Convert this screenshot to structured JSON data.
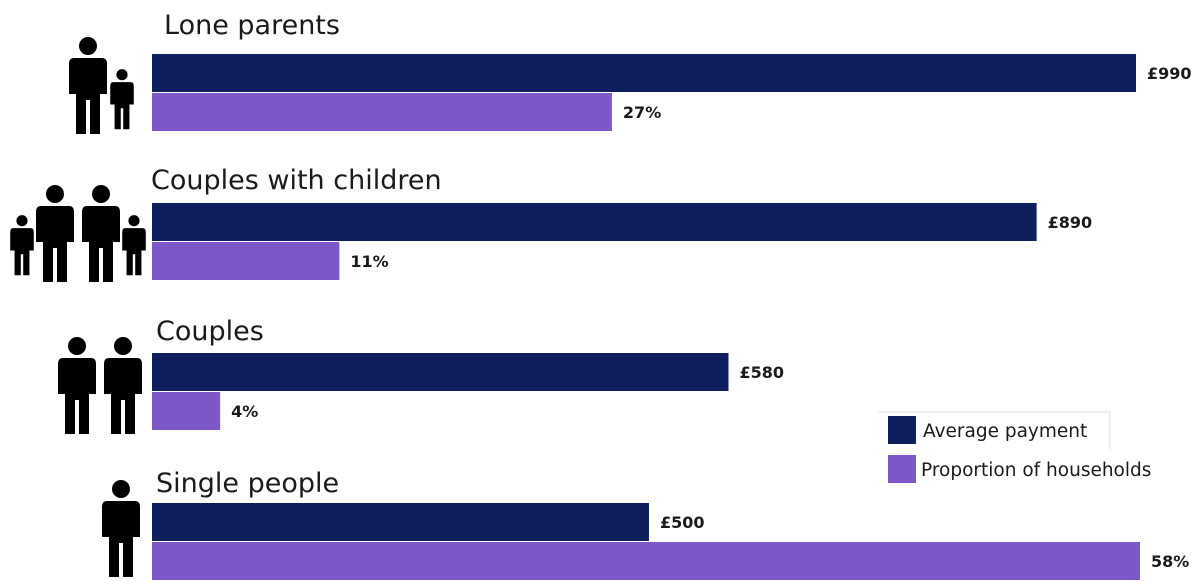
{
  "chart_data": {
    "type": "bar",
    "orientation": "horizontal",
    "categories": [
      "Lone parents",
      "Couples with children",
      "Couples",
      "Single people"
    ],
    "series": [
      {
        "name": "Average payment",
        "values": [
          990,
          890,
          580,
          500
        ],
        "labels": [
          "£990",
          "£890",
          "£580",
          "£500"
        ],
        "color": "#0d1f5c"
      },
      {
        "name": "Proportion of households",
        "values": [
          27,
          11,
          4,
          58
        ],
        "labels": [
          "27%",
          "11%",
          "4%",
          "58%"
        ],
        "color": "#7e57c8"
      }
    ],
    "legend": "right",
    "grid": false,
    "icons": [
      "adult-and-child-icon",
      "family-of-four-icon",
      "two-adults-icon",
      "single-adult-icon"
    ]
  }
}
